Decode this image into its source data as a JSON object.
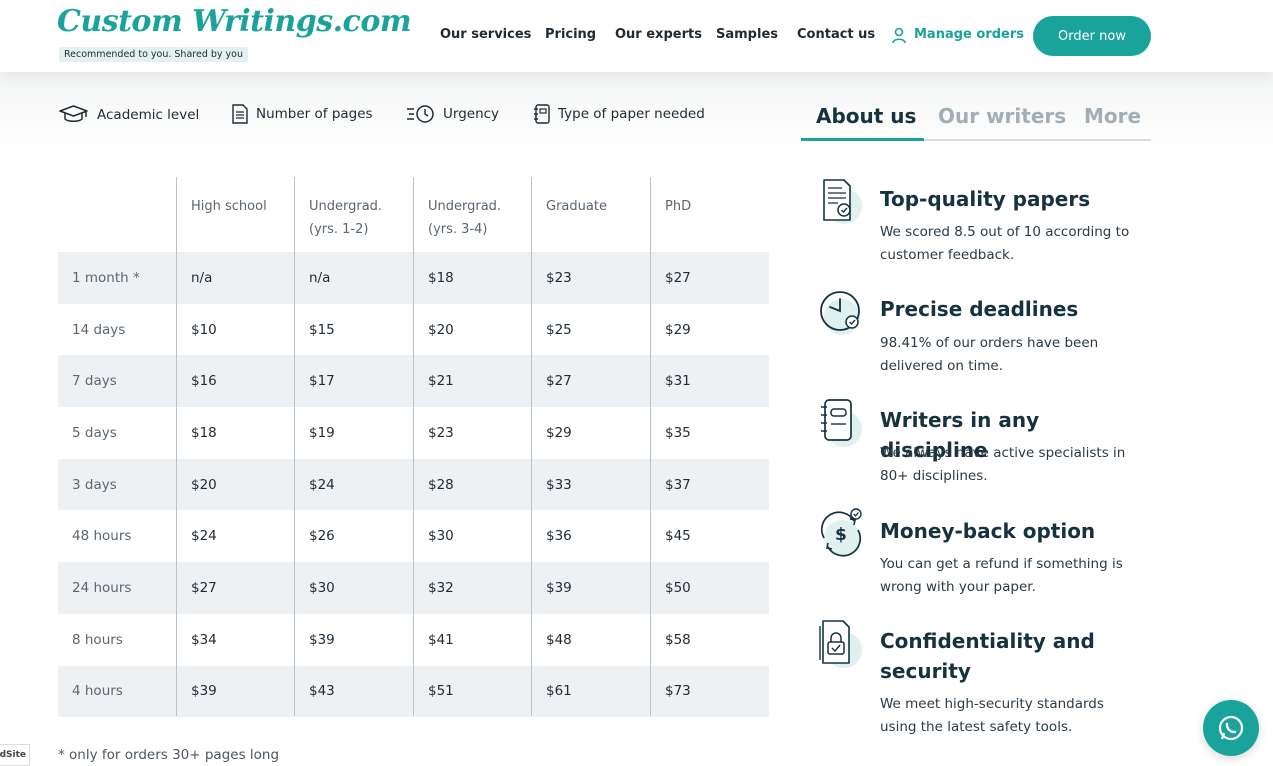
{
  "header": {
    "logo_text": "Custom Writings.com",
    "tagline": "Recommended to you. Shared by you",
    "nav": [
      "Our services",
      "Pricing",
      "Our experts",
      "Samples",
      "Contact us"
    ],
    "manage_orders": "Manage orders",
    "order_now": "Order now"
  },
  "filters": [
    "Academic level",
    "Number of pages",
    "Urgency",
    "Type of paper needed"
  ],
  "table": {
    "columns": [
      {
        "l1": "High school",
        "l2": ""
      },
      {
        "l1": "Undergrad.",
        "l2": "(yrs. 1-2)"
      },
      {
        "l1": "Undergrad.",
        "l2": "(yrs. 3-4)"
      },
      {
        "l1": "Graduate",
        "l2": ""
      },
      {
        "l1": "PhD",
        "l2": ""
      }
    ],
    "rows": [
      {
        "label": "1 month *",
        "values": [
          "n/a",
          "n/a",
          "$18",
          "$23",
          "$27"
        ]
      },
      {
        "label": "14 days",
        "values": [
          "$10",
          "$15",
          "$20",
          "$25",
          "$29"
        ]
      },
      {
        "label": "7 days",
        "values": [
          "$16",
          "$17",
          "$21",
          "$27",
          "$31"
        ]
      },
      {
        "label": "5 days",
        "values": [
          "$18",
          "$19",
          "$23",
          "$29",
          "$35"
        ]
      },
      {
        "label": "3 days",
        "values": [
          "$20",
          "$24",
          "$28",
          "$33",
          "$37"
        ]
      },
      {
        "label": "48 hours",
        "values": [
          "$24",
          "$26",
          "$30",
          "$36",
          "$45"
        ]
      },
      {
        "label": "24 hours",
        "values": [
          "$27",
          "$30",
          "$32",
          "$39",
          "$50"
        ]
      },
      {
        "label": "8 hours",
        "values": [
          "$34",
          "$39",
          "$41",
          "$48",
          "$58"
        ]
      },
      {
        "label": "4 hours",
        "values": [
          "$39",
          "$43",
          "$51",
          "$61",
          "$73"
        ]
      }
    ],
    "footnote": "* only for orders 30+ pages long"
  },
  "tabs": [
    "About us",
    "Our writers",
    "More"
  ],
  "features": [
    {
      "icon": "document-check-icon",
      "title": "Top-quality papers",
      "text": "We scored 8.5 out of 10 according to customer feedback."
    },
    {
      "icon": "clock-check-icon",
      "title": "Precise deadlines",
      "text": "98.41% of our orders have been delivered on time."
    },
    {
      "icon": "notebook-icon",
      "title": "Writers in any discipline",
      "text": "We always have active specialists in 80+ disciplines."
    },
    {
      "icon": "money-back-icon",
      "title": "Money-back option",
      "text": "You can get a refund if something is wrong with your paper."
    },
    {
      "icon": "lock-document-icon",
      "title": "Confidentiality and security",
      "text": "We meet high-security standards using the latest safety tools."
    }
  ],
  "badge_text": "dSite",
  "colors": {
    "accent": "#1aa39a",
    "row_shade": "#eef1f4",
    "heading": "#16323f"
  }
}
